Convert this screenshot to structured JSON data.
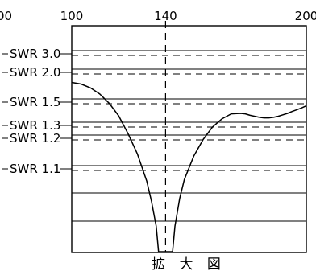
{
  "chart_data": {
    "type": "line",
    "caption": "拡 大 図",
    "x_ticks": [
      {
        "value": 100,
        "label": "100"
      },
      {
        "value": 140,
        "label": "140"
      },
      {
        "value": 200,
        "label": "200"
      }
    ],
    "left_partial_tick": {
      "label": "00"
    },
    "center_marker": 140,
    "xlim": [
      100,
      200
    ],
    "swr_levels": [
      {
        "swr": 3.0,
        "label": "SWR 3.0"
      },
      {
        "swr": 2.0,
        "label": "SWR 2.0"
      },
      {
        "swr": 1.5,
        "label": "SWR 1.5"
      },
      {
        "swr": 1.3,
        "label": "SWR 1.3"
      },
      {
        "swr": 1.2,
        "label": "SWR 1.2"
      },
      {
        "swr": 1.1,
        "label": "SWR 1.1"
      }
    ],
    "extra_solid_gridlines": 2,
    "series": [
      {
        "x": [
          100,
          104,
          108,
          112,
          116,
          120,
          124,
          128,
          132,
          134,
          136,
          137,
          138,
          139,
          140,
          141,
          142,
          143,
          144,
          146,
          148,
          152,
          156,
          160,
          164,
          168,
          172,
          174,
          176,
          178,
          180,
          182,
          184,
          186,
          188,
          190,
          192,
          194,
          196,
          198,
          200
        ],
        "y": [
          1.96,
          1.93,
          1.86,
          1.76,
          1.63,
          1.49,
          1.34,
          1.22,
          1.12,
          1.075,
          1.04,
          1.02,
          1.005,
          1.0,
          1.0,
          1.0,
          1.005,
          1.02,
          1.04,
          1.08,
          1.125,
          1.21,
          1.3,
          1.39,
          1.46,
          1.51,
          1.515,
          1.51,
          1.495,
          1.485,
          1.475,
          1.47,
          1.47,
          1.475,
          1.485,
          1.5,
          1.515,
          1.535,
          1.555,
          1.575,
          1.6
        ]
      }
    ]
  }
}
